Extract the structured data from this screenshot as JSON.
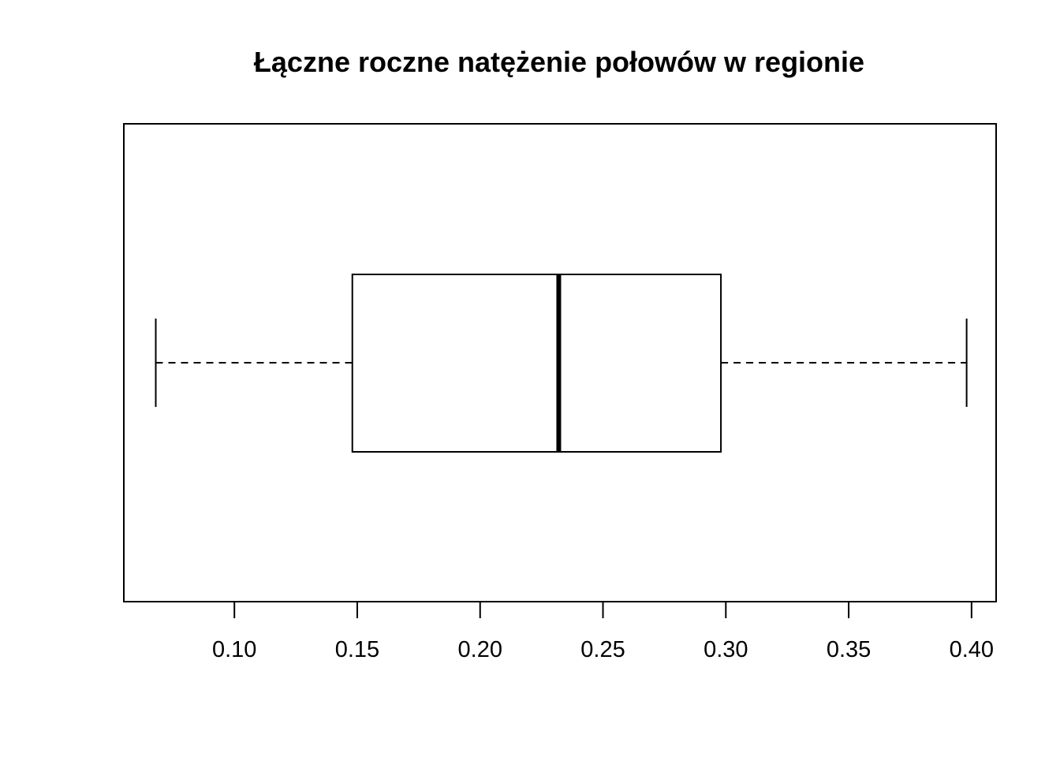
{
  "chart_data": {
    "type": "boxplot",
    "orientation": "horizontal",
    "title": "Łączne roczne natężenie połowów w regionie",
    "xlabel": "",
    "ylabel": "",
    "xlim": [
      0.055,
      0.41
    ],
    "x_ticks": [
      0.1,
      0.15,
      0.2,
      0.25,
      0.3,
      0.35,
      0.4
    ],
    "tick_labels": [
      "0.10",
      "0.15",
      "0.20",
      "0.25",
      "0.30",
      "0.35",
      "0.40"
    ],
    "box": {
      "whisker_low": 0.068,
      "q1": 0.148,
      "median": 0.232,
      "q3": 0.298,
      "whisker_high": 0.398
    },
    "grid": false,
    "colors": {
      "stroke": "#000000",
      "background": "#ffffff"
    }
  }
}
